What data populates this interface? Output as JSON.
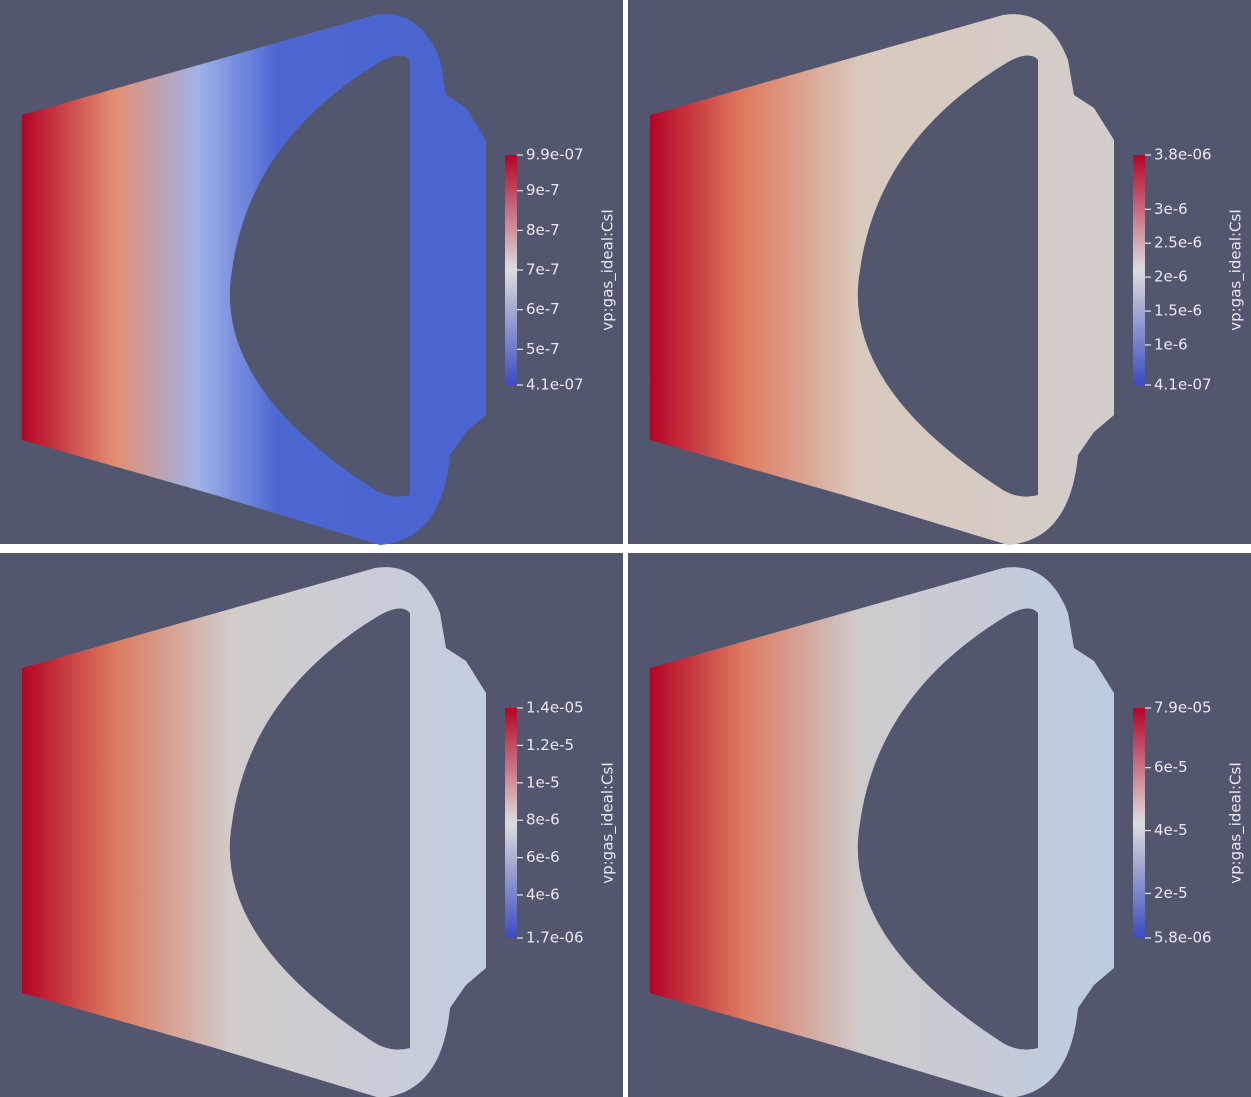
{
  "panels": [
    {
      "colorbar": {
        "title": "vp:gas_ideal:CsI",
        "range": [
          4.1e-07,
          9.9e-07
        ],
        "ticks": [
          {
            "value": 9.9e-07,
            "label": "9.9e-07"
          },
          {
            "value": 9e-07,
            "label": "9e-7"
          },
          {
            "value": 8e-07,
            "label": "8e-7"
          },
          {
            "value": 7e-07,
            "label": "7e-7"
          },
          {
            "value": 6e-07,
            "label": "6e-7"
          },
          {
            "value": 5e-07,
            "label": "5e-7"
          },
          {
            "value": 4.1e-07,
            "label": "4.1e-07"
          }
        ]
      }
    },
    {
      "colorbar": {
        "title": "vp:gas_ideal:CsI",
        "range": [
          4.1e-07,
          3.8e-06
        ],
        "ticks": [
          {
            "value": 3.8e-06,
            "label": "3.8e-06"
          },
          {
            "value": 3e-06,
            "label": "3e-6"
          },
          {
            "value": 2.5e-06,
            "label": "2.5e-6"
          },
          {
            "value": 2e-06,
            "label": "2e-6"
          },
          {
            "value": 1.5e-06,
            "label": "1.5e-6"
          },
          {
            "value": 1e-06,
            "label": "1e-6"
          },
          {
            "value": 4.1e-07,
            "label": "4.1e-07"
          }
        ]
      }
    },
    {
      "colorbar": {
        "title": "vp:gas_ideal:CsI",
        "range": [
          1.7e-06,
          1.4e-05
        ],
        "ticks": [
          {
            "value": 1.4e-05,
            "label": "1.4e-05"
          },
          {
            "value": 1.2e-05,
            "label": "1.2e-5"
          },
          {
            "value": 1e-05,
            "label": "1e-5"
          },
          {
            "value": 8e-06,
            "label": "8e-6"
          },
          {
            "value": 6e-06,
            "label": "6e-6"
          },
          {
            "value": 4e-06,
            "label": "4e-6"
          },
          {
            "value": 1.7e-06,
            "label": "1.7e-06"
          }
        ]
      }
    },
    {
      "colorbar": {
        "title": "vp:gas_ideal:CsI",
        "range": [
          5.8e-06,
          7.9e-05
        ],
        "ticks": [
          {
            "value": 7.9e-05,
            "label": "7.9e-05"
          },
          {
            "value": 6e-05,
            "label": "6e-5"
          },
          {
            "value": 4e-05,
            "label": "4e-5"
          },
          {
            "value": 2e-05,
            "label": "2e-5"
          },
          {
            "value": 5.8e-06,
            "label": "5.8e-06"
          }
        ]
      }
    }
  ]
}
